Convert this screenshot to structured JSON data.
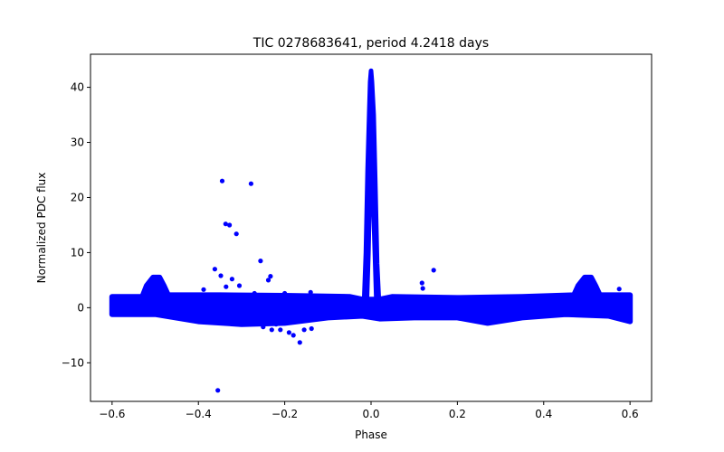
{
  "chart_data": {
    "type": "scatter",
    "title": "TIC 0278683641, period 4.2418 days",
    "xlabel": "Phase",
    "ylabel": "Normalized PDC flux",
    "xlim": [
      -0.65,
      0.65
    ],
    "ylim": [
      -17,
      46
    ],
    "xticks": [
      -0.6,
      -0.4,
      -0.2,
      0.0,
      0.2,
      0.4,
      0.6
    ],
    "xtick_labels": [
      "−0.6",
      "−0.4",
      "−0.2",
      "0.0",
      "0.2",
      "0.4",
      "0.6"
    ],
    "yticks": [
      -10,
      0,
      10,
      20,
      30,
      40
    ],
    "ytick_labels": [
      "−10",
      "0",
      "10",
      "20",
      "30",
      "40"
    ],
    "grid": false,
    "point_color": "#0000ff",
    "band_color": "#0000ff",
    "baseline_band": {
      "x_range": [
        -0.6,
        0.6
      ],
      "upper": [
        [
          -0.6,
          2.0
        ],
        [
          -0.53,
          2.0
        ],
        [
          -0.52,
          4.0
        ],
        [
          -0.505,
          5.5
        ],
        [
          -0.49,
          5.5
        ],
        [
          -0.48,
          4.0
        ],
        [
          -0.47,
          2.3
        ],
        [
          -0.35,
          2.3
        ],
        [
          -0.2,
          2.2
        ],
        [
          -0.05,
          2.0
        ],
        [
          -0.02,
          1.5
        ],
        [
          0.02,
          1.5
        ],
        [
          0.05,
          2.0
        ],
        [
          0.2,
          1.8
        ],
        [
          0.35,
          2.0
        ],
        [
          0.47,
          2.3
        ],
        [
          0.48,
          4.0
        ],
        [
          0.495,
          5.5
        ],
        [
          0.51,
          5.5
        ],
        [
          0.52,
          4.0
        ],
        [
          0.53,
          2.3
        ],
        [
          0.6,
          2.3
        ]
      ],
      "lower": [
        [
          -0.6,
          -1.2
        ],
        [
          -0.5,
          -1.2
        ],
        [
          -0.4,
          -2.5
        ],
        [
          -0.3,
          -3.0
        ],
        [
          -0.2,
          -2.8
        ],
        [
          -0.1,
          -1.8
        ],
        [
          -0.02,
          -1.5
        ],
        [
          0.02,
          -2.0
        ],
        [
          0.1,
          -1.8
        ],
        [
          0.2,
          -1.8
        ],
        [
          0.27,
          -2.8
        ],
        [
          0.35,
          -1.8
        ],
        [
          0.45,
          -1.2
        ],
        [
          0.55,
          -1.5
        ],
        [
          0.6,
          -2.5
        ]
      ]
    },
    "peak_band": {
      "upper": [
        [
          -0.016,
          1.5
        ],
        [
          -0.012,
          10
        ],
        [
          -0.008,
          25
        ],
        [
          -0.004,
          36
        ],
        [
          -0.002,
          41
        ],
        [
          0.0,
          43
        ],
        [
          0.002,
          41
        ],
        [
          0.006,
          35
        ],
        [
          0.01,
          22
        ],
        [
          0.014,
          8
        ],
        [
          0.018,
          1.5
        ]
      ],
      "lower": [
        [
          -0.016,
          -1.0
        ],
        [
          -0.01,
          0
        ],
        [
          -0.006,
          10
        ],
        [
          -0.002,
          25
        ],
        [
          0.0,
          27
        ],
        [
          0.003,
          25
        ],
        [
          0.008,
          12
        ],
        [
          0.012,
          2
        ],
        [
          0.018,
          -1.5
        ]
      ]
    },
    "outliers": [
      [
        -0.355,
        -15.0
      ],
      [
        -0.345,
        23.0
      ],
      [
        -0.337,
        15.2
      ],
      [
        -0.328,
        15.0
      ],
      [
        -0.312,
        13.4
      ],
      [
        -0.278,
        22.5
      ],
      [
        -0.256,
        8.5
      ],
      [
        -0.233,
        5.7
      ],
      [
        -0.238,
        5.0
      ],
      [
        -0.362,
        7.0
      ],
      [
        -0.348,
        5.8
      ],
      [
        -0.322,
        5.2
      ],
      [
        -0.305,
        4.0
      ],
      [
        -0.336,
        3.8
      ],
      [
        -0.388,
        3.3
      ],
      [
        -0.27,
        2.6
      ],
      [
        -0.2,
        2.6
      ],
      [
        -0.14,
        2.8
      ],
      [
        -0.22,
        -3.0
      ],
      [
        -0.21,
        -4.0
      ],
      [
        -0.19,
        -4.5
      ],
      [
        -0.18,
        -5.0
      ],
      [
        -0.165,
        -6.3
      ],
      [
        -0.155,
        -4.0
      ],
      [
        -0.138,
        -3.8
      ],
      [
        -0.25,
        -3.5
      ],
      [
        -0.23,
        -4.0
      ],
      [
        0.118,
        4.5
      ],
      [
        0.12,
        3.5
      ],
      [
        0.145,
        6.8
      ],
      [
        -0.01,
        1.2
      ],
      [
        0.575,
        3.4
      ],
      [
        -0.595,
        2.0
      ]
    ]
  }
}
